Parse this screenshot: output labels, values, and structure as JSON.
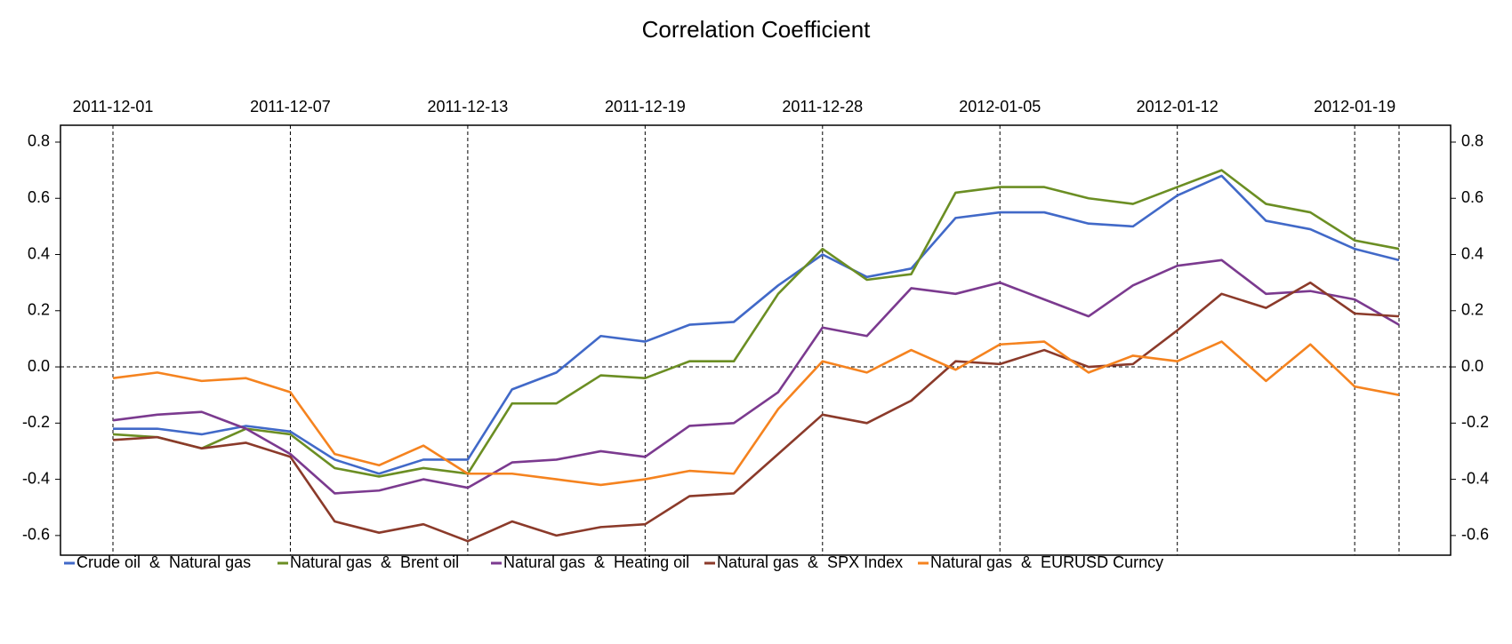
{
  "chart_data": {
    "type": "line",
    "title": "Correlation Coefficient",
    "categories": [
      "2011-12-01",
      null,
      null,
      null,
      "2011-12-07",
      null,
      null,
      null,
      "2011-12-13",
      null,
      null,
      null,
      "2011-12-19",
      null,
      null,
      null,
      "2011-12-28",
      null,
      null,
      null,
      "2012-01-05",
      null,
      null,
      null,
      "2012-01-12",
      null,
      null,
      null,
      "2012-01-19",
      null
    ],
    "series": [
      {
        "name": "Crude oil  &  Natural gas",
        "color": "#4169c8",
        "values": [
          -0.22,
          -0.22,
          -0.24,
          -0.21,
          -0.23,
          -0.33,
          -0.38,
          -0.33,
          -0.33,
          -0.08,
          -0.02,
          0.11,
          0.09,
          0.15,
          0.16,
          0.29,
          0.4,
          0.32,
          0.35,
          0.53,
          0.55,
          0.55,
          0.51,
          0.5,
          0.61,
          0.68,
          0.52,
          0.49,
          0.42,
          0.38
        ]
      },
      {
        "name": "Natural gas  &  Brent oil",
        "color": "#6b8e23",
        "values": [
          -0.24,
          -0.25,
          -0.29,
          -0.22,
          -0.24,
          -0.36,
          -0.39,
          -0.36,
          -0.38,
          -0.13,
          -0.13,
          -0.03,
          -0.04,
          0.02,
          0.02,
          0.26,
          0.42,
          0.31,
          0.33,
          0.62,
          0.64,
          0.64,
          0.6,
          0.58,
          0.64,
          0.7,
          0.58,
          0.55,
          0.45,
          0.42
        ]
      },
      {
        "name": "Natural gas  &  Heating oil",
        "color": "#7b3a8f",
        "values": [
          -0.19,
          -0.17,
          -0.16,
          -0.22,
          -0.31,
          -0.45,
          -0.44,
          -0.4,
          -0.43,
          -0.34,
          -0.33,
          -0.3,
          -0.32,
          -0.21,
          -0.2,
          -0.09,
          0.14,
          0.11,
          0.28,
          0.26,
          0.3,
          0.24,
          0.18,
          0.29,
          0.36,
          0.38,
          0.26,
          0.27,
          0.24,
          0.15
        ]
      },
      {
        "name": "Natural gas  &  SPX Index",
        "color": "#8b3a2a",
        "values": [
          -0.26,
          -0.25,
          -0.29,
          -0.27,
          -0.32,
          -0.55,
          -0.59,
          -0.56,
          -0.62,
          -0.55,
          -0.6,
          -0.57,
          -0.56,
          -0.46,
          -0.45,
          -0.31,
          -0.17,
          -0.2,
          -0.12,
          0.02,
          0.01,
          0.06,
          0.0,
          0.01,
          0.13,
          0.26,
          0.21,
          0.3,
          0.19,
          0.18
        ]
      },
      {
        "name": "Natural gas  &  EURUSD Curncy",
        "color": "#f5831f",
        "values": [
          -0.04,
          -0.02,
          -0.05,
          -0.04,
          -0.09,
          -0.31,
          -0.35,
          -0.28,
          -0.38,
          -0.38,
          -0.4,
          -0.42,
          -0.4,
          -0.37,
          -0.38,
          -0.15,
          0.02,
          -0.02,
          0.06,
          -0.01,
          0.08,
          0.09,
          -0.02,
          0.04,
          0.02,
          0.09,
          -0.05,
          0.08,
          -0.07,
          -0.1
        ]
      }
    ],
    "ylim": [
      -0.67,
      0.86
    ],
    "yticks": [
      {
        "value": 0.8,
        "label": "0.8"
      },
      {
        "value": 0.6,
        "label": "0.6"
      },
      {
        "value": 0.4,
        "label": "0.4"
      },
      {
        "value": 0.2,
        "label": "0.2"
      },
      {
        "value": 0,
        "label": "0.0"
      },
      {
        "value": -0.2,
        "label": "-0.2"
      },
      {
        "value": -0.4,
        "label": "-0.4"
      },
      {
        "value": -0.6,
        "label": "-0.6"
      }
    ],
    "grid": true
  }
}
